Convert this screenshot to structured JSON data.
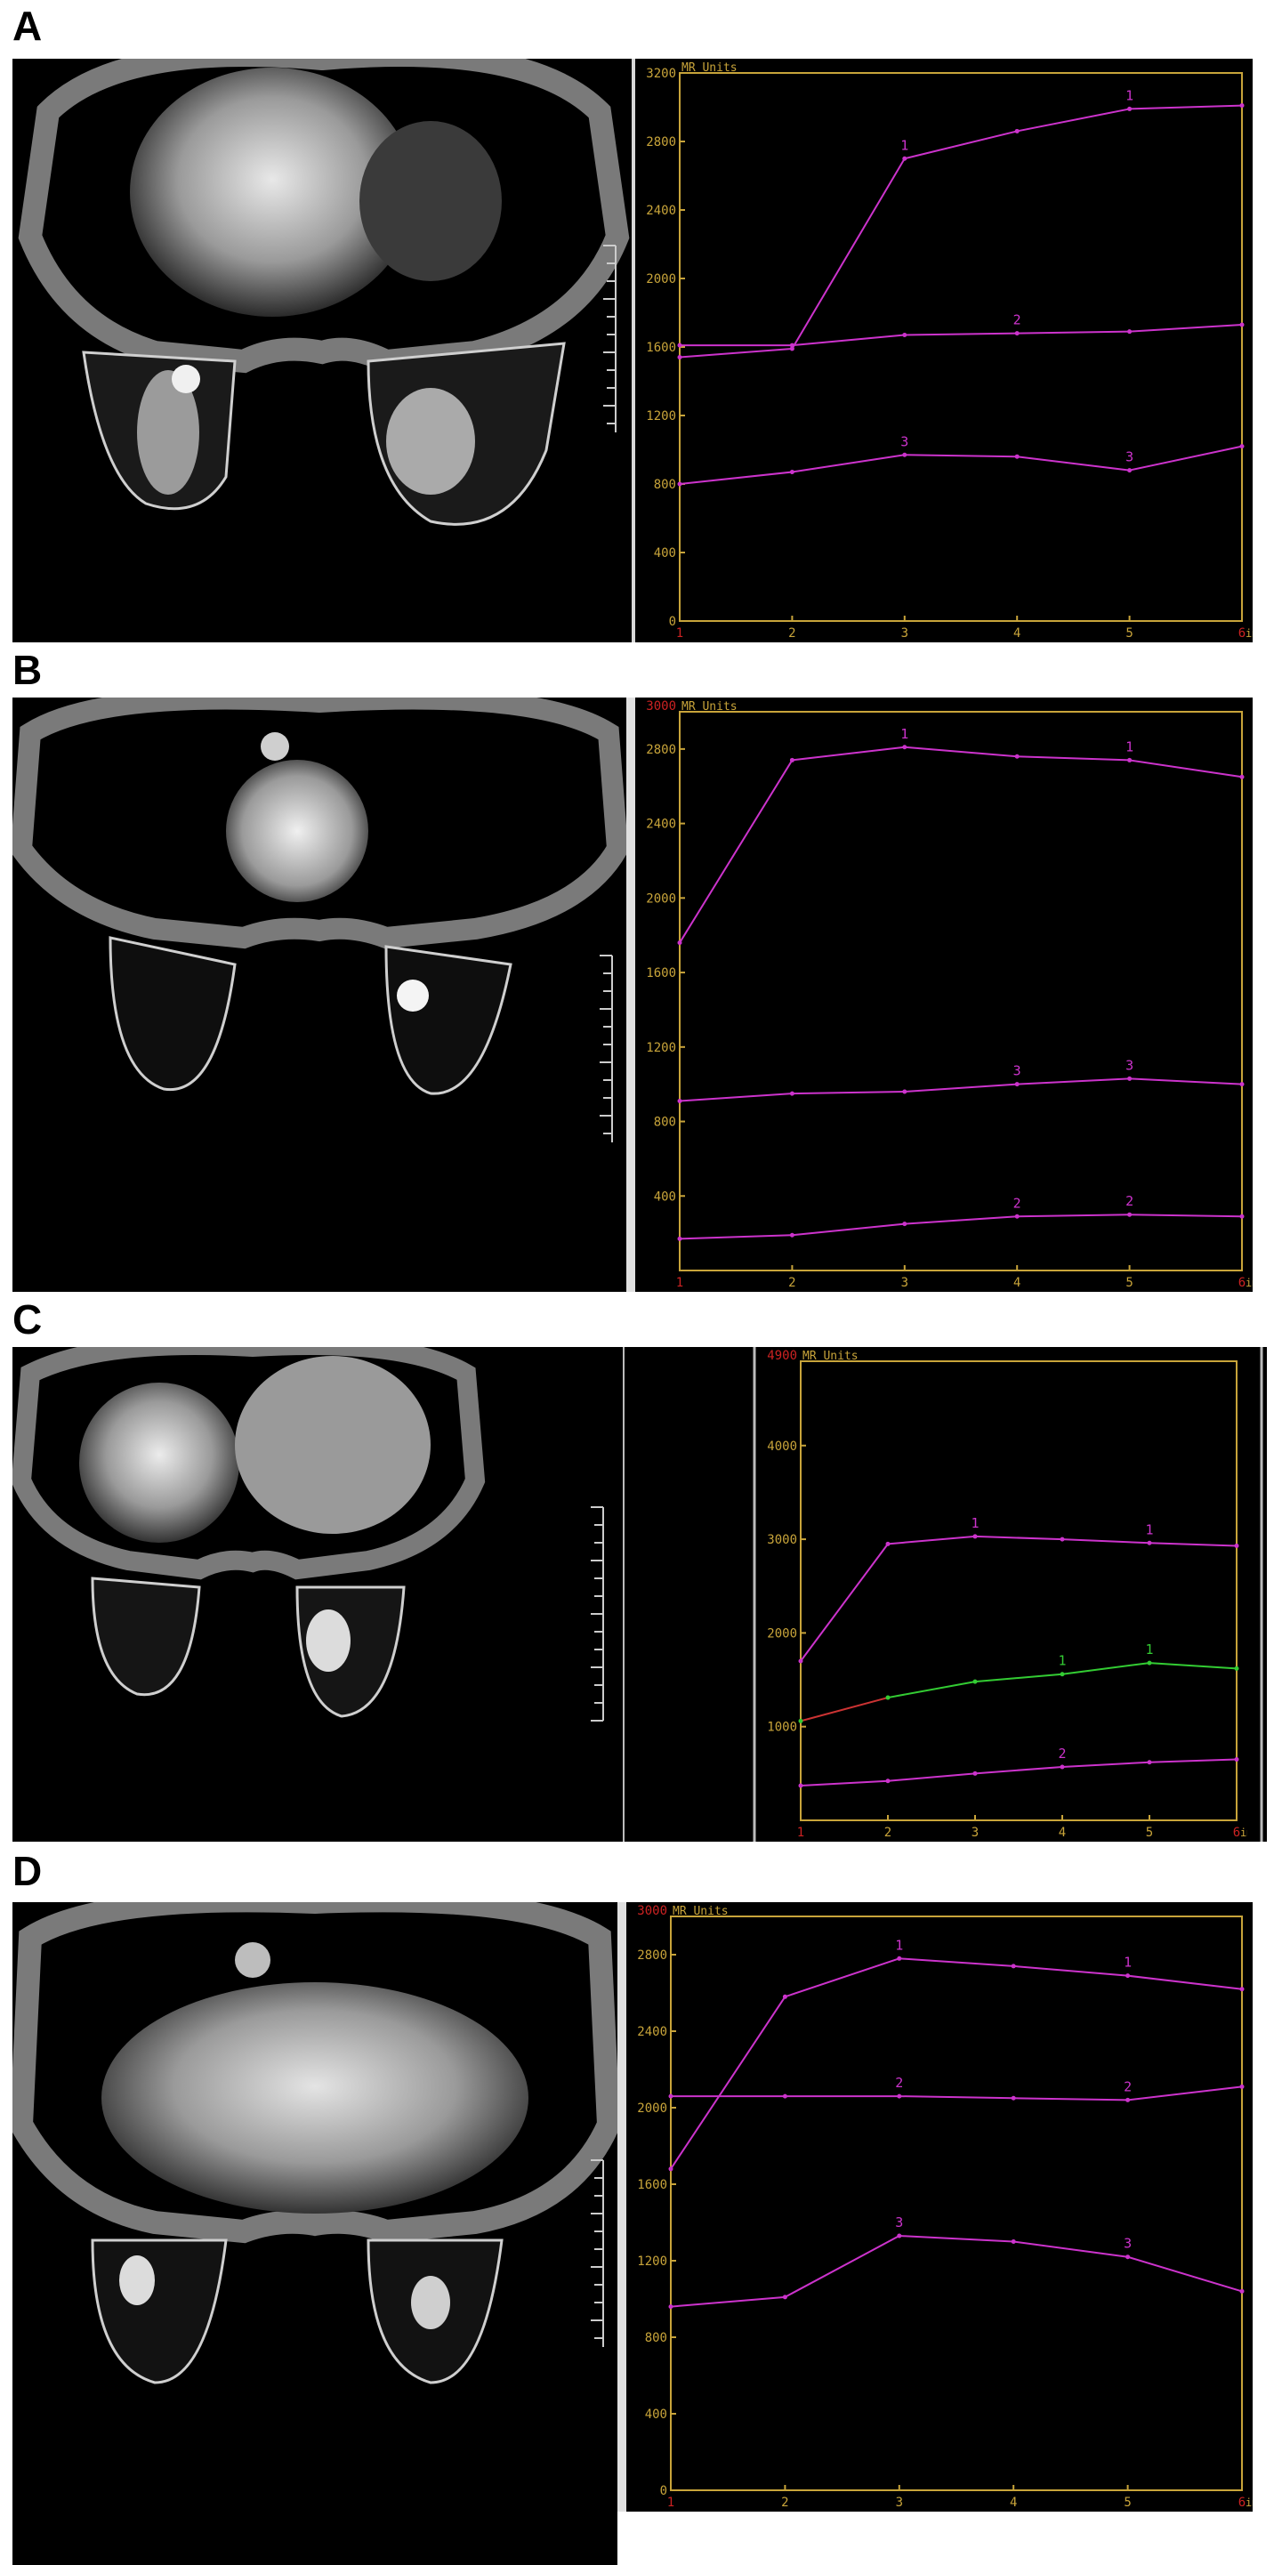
{
  "labels": {
    "a": "A",
    "b": "B",
    "c": "C",
    "d": "D"
  },
  "chart_data": [
    {
      "panel": "A",
      "type": "line",
      "unit_label": "MR Units",
      "x_unit": "im",
      "x": [
        1,
        2,
        3,
        4,
        5,
        6
      ],
      "ylim": [
        0,
        3200
      ],
      "yticks": [
        0,
        400,
        800,
        1200,
        1600,
        2000,
        2400,
        2800,
        3200
      ],
      "series": [
        {
          "name": "1",
          "values": [
            1540,
            1590,
            2700,
            2860,
            2990,
            3010
          ],
          "color": "#cc33cc",
          "marks": [
            3,
            5
          ]
        },
        {
          "name": "2",
          "values": [
            1610,
            1610,
            1670,
            1680,
            1690,
            1730
          ],
          "color": "#cc33cc",
          "marks": [
            4
          ]
        },
        {
          "name": "3",
          "values": [
            800,
            870,
            970,
            960,
            880,
            1020
          ],
          "color": "#cc33cc",
          "marks": [
            3,
            5
          ]
        }
      ]
    },
    {
      "panel": "B",
      "type": "line",
      "unit_label": "MR Units",
      "top_label": "3000",
      "x_unit": "im",
      "x": [
        1,
        2,
        3,
        4,
        5,
        6
      ],
      "ylim": [
        0,
        3000
      ],
      "yticks": [
        400,
        800,
        1200,
        1600,
        2000,
        2400,
        2800
      ],
      "series": [
        {
          "name": "1",
          "values": [
            1760,
            2740,
            2810,
            2760,
            2740,
            2650
          ],
          "color": "#cc33cc",
          "marks": [
            3,
            5
          ]
        },
        {
          "name": "3",
          "values": [
            910,
            950,
            960,
            1000,
            1030,
            1000
          ],
          "color": "#cc33cc",
          "marks": [
            4,
            5
          ]
        },
        {
          "name": "2",
          "values": [
            170,
            190,
            250,
            290,
            300,
            290
          ],
          "color": "#cc33cc",
          "marks": [
            4,
            5
          ]
        }
      ]
    },
    {
      "panel": "C",
      "type": "line",
      "unit_label": "MR Units",
      "top_label": "4900",
      "x_unit": "im",
      "x": [
        1,
        2,
        3,
        4,
        5,
        6
      ],
      "ylim": [
        0,
        4900
      ],
      "yticks": [
        1000,
        2000,
        3000,
        4000
      ],
      "series": [
        {
          "name": "1",
          "values": [
            1700,
            2950,
            3030,
            3000,
            2960,
            2930
          ],
          "color": "#cc33cc",
          "marks": [
            3,
            5
          ]
        },
        {
          "name": "1",
          "values": [
            1060,
            1310,
            1480,
            1560,
            1680,
            1620
          ],
          "color": "#33cc33",
          "segment_colors": [
            "#cc3333",
            "#33cc33",
            "#33cc33",
            "#33cc33",
            "#33cc33"
          ],
          "marks": [
            4,
            5
          ]
        },
        {
          "name": "2",
          "values": [
            370,
            420,
            500,
            570,
            620,
            650
          ],
          "color": "#cc33cc",
          "marks": [
            4
          ]
        }
      ]
    },
    {
      "panel": "D",
      "type": "line",
      "unit_label": "MR Units",
      "top_label": "3000",
      "x_unit": "im",
      "x": [
        1,
        2,
        3,
        4,
        5,
        6
      ],
      "ylim": [
        0,
        3000
      ],
      "yticks": [
        0,
        400,
        800,
        1200,
        1600,
        2000,
        2400,
        2800
      ],
      "series": [
        {
          "name": "1",
          "values": [
            1680,
            2580,
            2780,
            2740,
            2690,
            2620
          ],
          "color": "#cc33cc",
          "marks": [
            3,
            5
          ]
        },
        {
          "name": "2",
          "values": [
            2060,
            2060,
            2060,
            2050,
            2040,
            2110
          ],
          "color": "#cc33cc",
          "marks": [
            3,
            5
          ]
        },
        {
          "name": "3",
          "values": [
            960,
            1010,
            1330,
            1300,
            1220,
            1040
          ],
          "color": "#cc33cc",
          "marks": [
            3,
            5
          ]
        }
      ]
    }
  ]
}
